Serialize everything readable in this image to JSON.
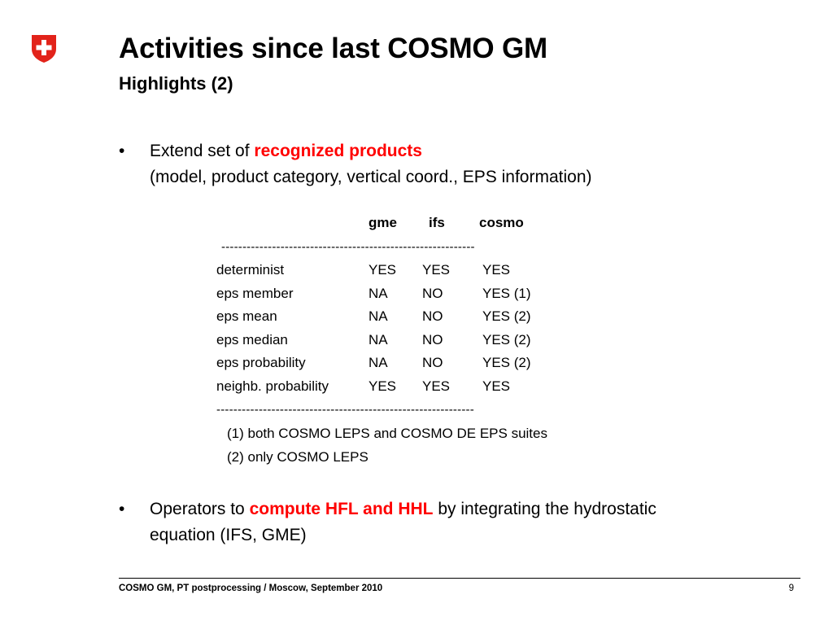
{
  "logo": {
    "icon": "swiss-flag-shield-icon",
    "color": "#e2231a"
  },
  "title": "Activities since last COSMO GM",
  "subtitle": "Highlights (2)",
  "bullets": [
    {
      "marker": "•",
      "prefix": "Extend set of ",
      "highlight": "recognized products",
      "line2": "(model, product category, vertical coord., EPS information)"
    },
    {
      "marker": "•",
      "prefix": "Operators to ",
      "highlight": "compute HFL and HHL",
      "suffix": " by integrating the hydrostatic",
      "line2": "equation (IFS, GME)"
    }
  ],
  "table": {
    "headers": [
      "gme",
      "ifs",
      "cosmo"
    ],
    "dashes_top": "------------------------------------------------------------",
    "dashes_bottom": "-------------------------------------------------------------",
    "rows": [
      [
        "determinist",
        "YES",
        "YES",
        "YES"
      ],
      [
        "eps member",
        "NA",
        "NO",
        "YES (1)"
      ],
      [
        "eps mean",
        "NA",
        "NO",
        "YES (2)"
      ],
      [
        "eps median",
        "NA",
        "NO",
        "YES (2)"
      ],
      [
        "eps probability",
        "NA",
        "NO",
        "YES (2)"
      ],
      [
        "neighb. probability",
        "YES",
        "YES",
        "YES"
      ]
    ],
    "notes": [
      "(1) both COSMO LEPS and COSMO DE EPS suites",
      "(2) only COSMO LEPS"
    ]
  },
  "footer": {
    "text": "COSMO GM, PT postprocessing / Moscow, September 2010",
    "page": "9"
  },
  "colors": {
    "highlight": "#ff0000"
  }
}
